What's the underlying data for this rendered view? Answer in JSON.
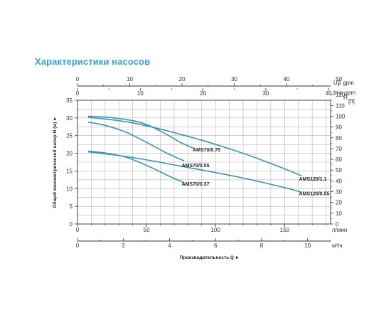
{
  "title": "Характеристики насосов",
  "chart_data": {
    "type": "line",
    "title": "Характеристики насосов",
    "ylabel": "Общий манометрический напор H (м) ►",
    "xlabel": "Производительность Q ►",
    "y_left": {
      "unit": "",
      "range": [
        0,
        35
      ],
      "ticks": [
        "0",
        "5",
        "10",
        "15",
        "20",
        "25",
        "30",
        "35"
      ]
    },
    "y_right": {
      "unit": "H [ft]",
      "range": [
        0,
        120
      ],
      "ticks": [
        "0",
        "10",
        "20",
        "30",
        "40",
        "50",
        "60",
        "70",
        "80",
        "90",
        "100",
        "110",
        "120"
      ]
    },
    "x_lpm": {
      "unit": "л/мин",
      "range": [
        0,
        183.3
      ],
      "ticks": [
        "0",
        "50",
        "100",
        "150"
      ]
    },
    "x_m3h": {
      "unit": "м³/ч",
      "range": [
        0,
        11
      ],
      "ticks": [
        "0",
        "2",
        "4",
        "6",
        "8",
        "10"
      ]
    },
    "x_usgpm": {
      "unit": "US gpm",
      "range": [
        0,
        48.4
      ],
      "ticks": [
        "0",
        "10",
        "20",
        "30",
        "40",
        "50"
      ]
    },
    "x_impgpm": {
      "unit": "Imp gpm",
      "range": [
        0,
        40.3
      ],
      "ticks": [
        "0",
        "10",
        "20",
        "30",
        "40"
      ]
    },
    "grid": true,
    "line_color": "#3d94ae",
    "series": [
      {
        "name": "AMS70/0.75",
        "x": [
          8,
          25,
          45,
          60,
          75,
          85
        ],
        "y": [
          30.5,
          30.1,
          28.8,
          26.3,
          23.0,
          21.3
        ]
      },
      {
        "name": "AMS70/0.55",
        "x": [
          8,
          20,
          35,
          50,
          65,
          77
        ],
        "y": [
          28.8,
          27.9,
          26.0,
          23.1,
          20.0,
          17.9
        ]
      },
      {
        "name": "AMS70/0.37",
        "x": [
          8,
          20,
          35,
          50,
          65,
          77
        ],
        "y": [
          20.6,
          20.1,
          18.9,
          16.6,
          13.8,
          11.7
        ]
      },
      {
        "name": "AMS120/1.1",
        "x": [
          8,
          40,
          80,
          120,
          150,
          162
        ],
        "y": [
          30.2,
          28.6,
          24.8,
          20.0,
          15.6,
          13.7
        ]
      },
      {
        "name": "AMS120/0.55",
        "x": [
          8,
          40,
          80,
          120,
          150,
          162
        ],
        "y": [
          20.4,
          18.8,
          16.0,
          13.0,
          10.3,
          9.0
        ]
      }
    ]
  }
}
